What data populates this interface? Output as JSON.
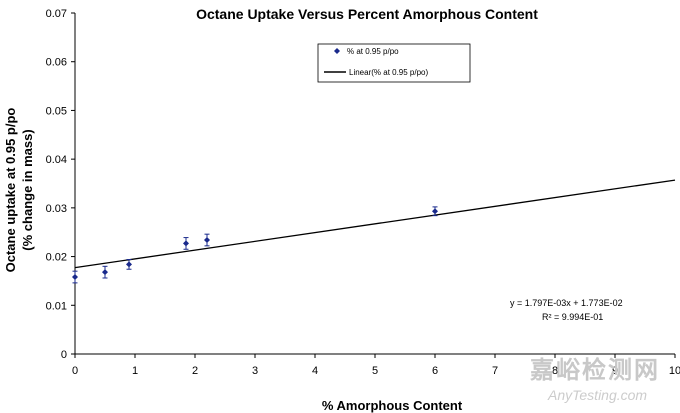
{
  "chart_data": {
    "type": "scatter",
    "title": "Octane Uptake Versus Percent Amorphous Content",
    "xlabel": "% Amorphous Content",
    "ylabel_line1": "Octane uptake at 0.95 p/po",
    "ylabel_line2": "(% change in mass)",
    "xlim": [
      0,
      10
    ],
    "ylim": [
      0,
      0.07
    ],
    "x_ticks": [
      "0",
      "1",
      "2",
      "3",
      "4",
      "5",
      "6",
      "7",
      "8",
      "9",
      "10"
    ],
    "y_ticks": [
      "0",
      "0.01",
      "0.02",
      "0.03",
      "0.04",
      "0.05",
      "0.06",
      "0.07"
    ],
    "grid": false,
    "legend_position": "top-center",
    "series": [
      {
        "name": "% at 0.95 p/po",
        "marker": "diamond",
        "color": "#1a2a8c",
        "x": [
          0.0,
          0.5,
          0.9,
          1.85,
          2.2,
          6.0
        ],
        "y": [
          0.0158,
          0.0168,
          0.0184,
          0.0227,
          0.0234,
          0.0293
        ],
        "error": [
          0.0012,
          0.0012,
          0.001,
          0.0012,
          0.0012,
          0.0009
        ]
      }
    ],
    "trendline": {
      "name": "Linear(% at 0.95 p/po)",
      "slope": 0.001797,
      "intercept": 0.01773,
      "color": "#000000"
    },
    "equation_line1": "y = 1.797E-03x  + 1.773E-02",
    "equation_line2": "R² = 9.994E-01"
  },
  "watermark": {
    "chinese": "嘉峪检测网",
    "english": "AnyTesting.com"
  }
}
